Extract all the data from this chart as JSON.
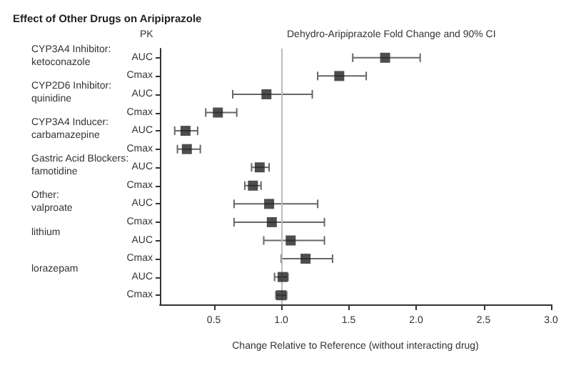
{
  "chart_data": {
    "type": "scatter",
    "orientation": "horizontal",
    "title": "Effect of Other Drugs on Aripiprazole",
    "subtitle": "Dehydro-Aripiprazole Fold Change and 90% CI",
    "ylabel": "PK",
    "xlabel": "Change Relative to Reference (without interacting drug)",
    "categories": [
      "AUC",
      "Cmax",
      "AUC",
      "Cmax",
      "AUC",
      "Cmax",
      "AUC",
      "Cmax",
      "AUC",
      "Cmax",
      "AUC",
      "Cmax",
      "AUC",
      "Cmax"
    ],
    "series": [
      {
        "color": "#222222",
        "values": [
          1.77,
          1.43,
          0.89,
          0.53,
          0.29,
          0.3,
          0.84,
          0.79,
          0.91,
          0.93,
          1.07,
          1.18,
          1.01,
          1.0
        ],
        "errors": [
          [
            1.53,
            2.03
          ],
          [
            1.27,
            1.63
          ],
          [
            0.64,
            1.23
          ],
          [
            0.44,
            0.67
          ],
          [
            0.21,
            0.38
          ],
          [
            0.23,
            0.4
          ],
          [
            0.78,
            0.91
          ],
          [
            0.73,
            0.85
          ],
          [
            0.65,
            1.27
          ],
          [
            0.65,
            1.32
          ],
          [
            0.87,
            1.32
          ],
          [
            1.0,
            1.38
          ],
          [
            0.95,
            1.05
          ],
          [
            0.96,
            1.04
          ]
        ]
      }
    ],
    "annotations": [
      "CYP3A4 Inhibitor:\nketoconazole",
      "CYP2D6 Inhibitor:\nquinidine",
      "CYP3A4 Inducer:\ncarbamazepine",
      "Gastric Acid Blockers:\nfamotidine",
      "Other:\nvalproate",
      "lithium",
      "lorazepam"
    ],
    "ref_lines": [
      {
        "axis": "x",
        "value": 1,
        "color": "#bbbbbb"
      }
    ],
    "xlim": [
      0.1,
      3.0
    ],
    "xticks": [
      0.5,
      {
        "value": 1,
        "label": "1.0"
      },
      1.5,
      {
        "value": 2,
        "label": "2.0"
      },
      2.5,
      {
        "value": 3,
        "label": "3.0"
      }
    ],
    "marker": "square",
    "grid": false
  }
}
